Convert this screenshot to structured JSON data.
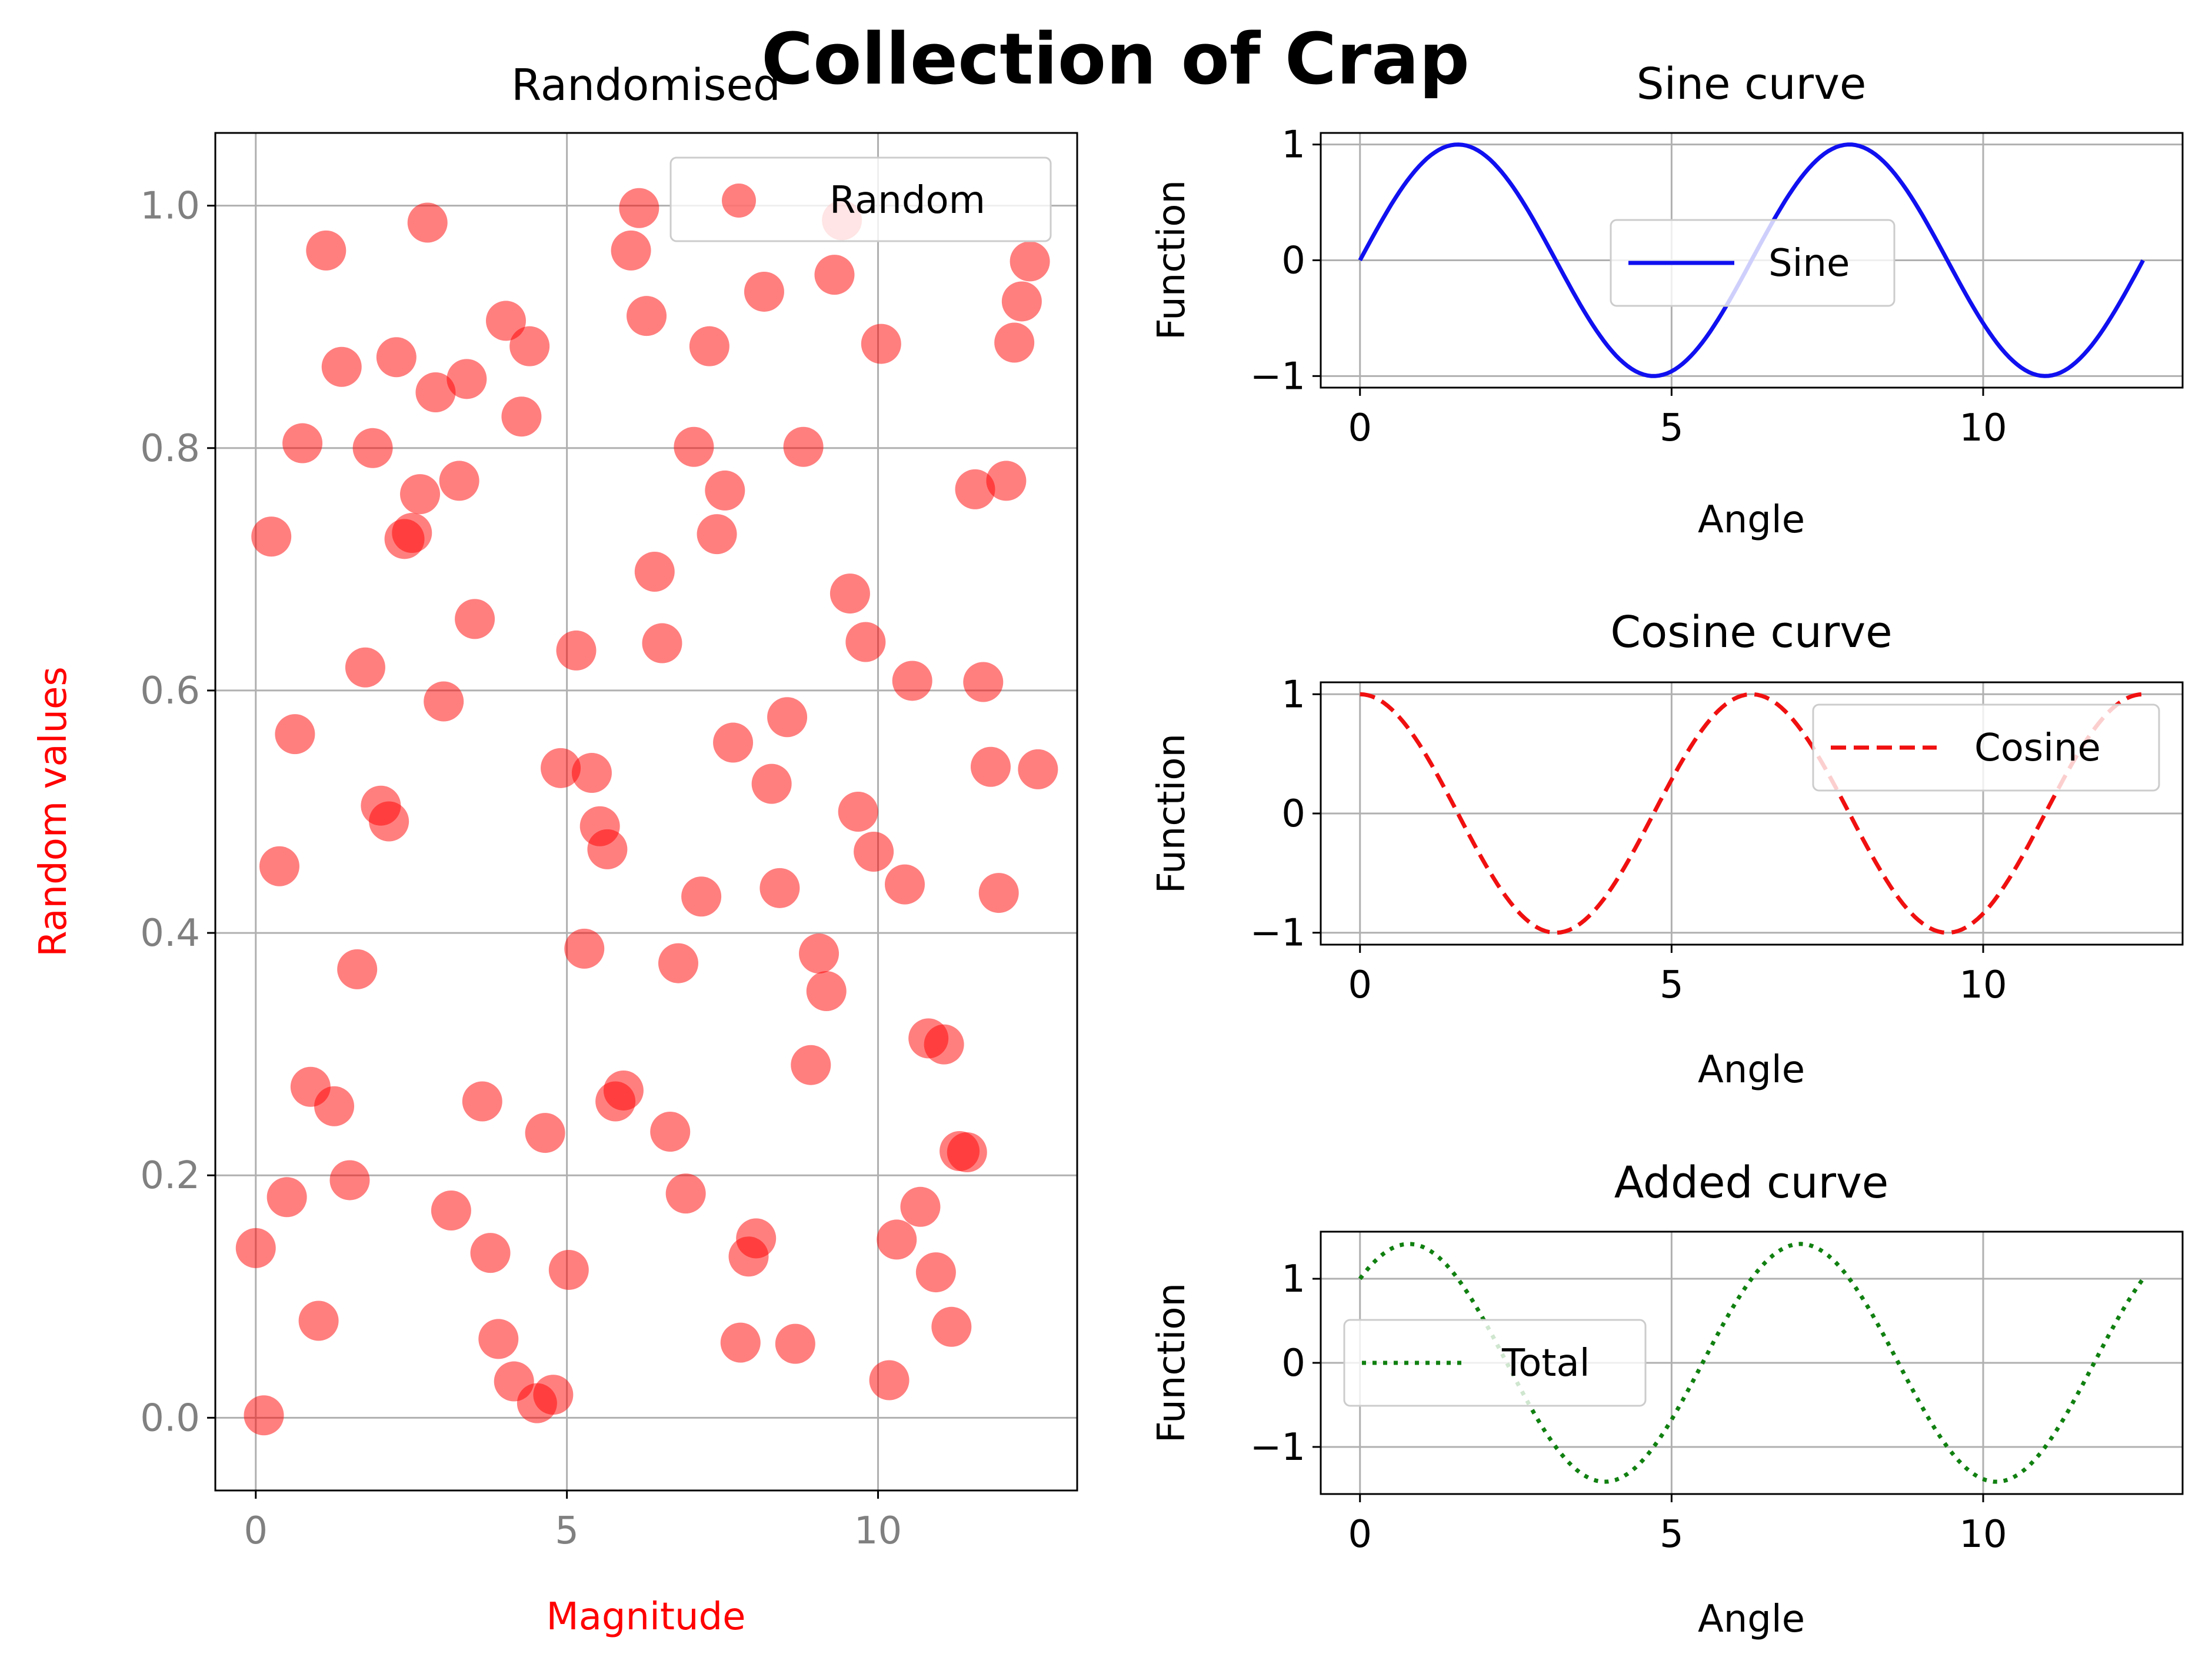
{
  "figure": {
    "suptitle": "Collection of Crap"
  },
  "chart_data": [
    {
      "id": "scatter",
      "type": "scatter",
      "title": "Randomised",
      "xlabel": "Magnitude",
      "ylabel": "Random values",
      "xlim": [
        -0.65,
        13.2
      ],
      "ylim": [
        -0.06,
        1.06
      ],
      "xticks": [
        0,
        5,
        10
      ],
      "yticks": [
        0.0,
        0.2,
        0.4,
        0.6,
        0.8,
        1.0
      ],
      "ytick_labels": [
        "0.0",
        "0.2",
        "0.4",
        "0.6",
        "0.8",
        "1.0"
      ],
      "grid": true,
      "legend": {
        "placement": "upper right",
        "entries": [
          "Random"
        ]
      },
      "colors": {
        "marker": "#ff0000",
        "marker_alpha": 0.5,
        "xlabel": "#ff0000",
        "ylabel": "#ff0000",
        "tick_labels": "#808080"
      },
      "series": [
        {
          "name": "Random",
          "x": [
            0.0,
            0.13,
            0.25,
            0.38,
            0.5,
            0.63,
            0.75,
            0.88,
            1.01,
            1.13,
            1.26,
            1.38,
            1.51,
            1.63,
            1.76,
            1.88,
            2.01,
            2.14,
            2.26,
            2.39,
            2.51,
            2.64,
            2.76,
            2.89,
            3.02,
            3.14,
            3.27,
            3.39,
            3.52,
            3.64,
            3.77,
            3.9,
            4.02,
            4.15,
            4.27,
            4.4,
            4.52,
            4.65,
            4.78,
            4.9,
            5.03,
            5.15,
            5.28,
            5.4,
            5.53,
            5.65,
            5.78,
            5.91,
            6.03,
            6.16,
            6.28,
            6.41,
            6.53,
            6.66,
            6.79,
            6.91,
            7.04,
            7.16,
            7.29,
            7.41,
            7.54,
            7.67,
            7.79,
            7.92,
            8.04,
            8.17,
            8.29,
            8.42,
            8.54,
            8.67,
            8.8,
            8.92,
            9.05,
            9.17,
            9.3,
            9.42,
            9.55,
            9.68,
            9.8,
            9.93,
            10.05,
            10.18,
            10.3,
            10.43,
            10.55,
            10.68,
            10.81,
            10.93,
            11.06,
            11.18,
            11.31,
            11.43,
            11.56,
            11.69,
            11.81,
            11.94,
            12.06,
            12.19,
            12.31,
            12.44,
            12.57
          ],
          "y": [
            0.14,
            0.002,
            0.727,
            0.455,
            0.182,
            0.564,
            0.804,
            0.273,
            0.08,
            0.963,
            0.257,
            0.867,
            0.196,
            0.37,
            0.619,
            0.8,
            0.505,
            0.492,
            0.875,
            0.725,
            0.73,
            0.762,
            0.986,
            0.846,
            0.591,
            0.171,
            0.773,
            0.857,
            0.659,
            0.261,
            0.136,
            0.065,
            0.905,
            0.03,
            0.826,
            0.884,
            0.012,
            0.235,
            0.019,
            0.536,
            0.122,
            0.633,
            0.387,
            0.532,
            0.488,
            0.469,
            0.261,
            0.27,
            0.963,
            0.998,
            0.909,
            0.698,
            0.639,
            0.236,
            0.375,
            0.185,
            0.801,
            0.43,
            0.884,
            0.729,
            0.765,
            0.557,
            0.062,
            0.133,
            0.148,
            0.929,
            0.523,
            0.437,
            0.578,
            0.061,
            0.801,
            0.291,
            0.383,
            0.352,
            0.943,
            0.988,
            0.68,
            0.5,
            0.64,
            0.467,
            0.886,
            0.031,
            0.147,
            0.44,
            0.608,
            0.174,
            0.313,
            0.12,
            0.308,
            0.075,
            0.22,
            0.219,
            0.766,
            0.607,
            0.537,
            0.433,
            0.773,
            0.887,
            0.921,
            0.954,
            0.535
          ]
        }
      ]
    },
    {
      "id": "sine",
      "type": "line",
      "title": "Sine curve",
      "xlabel": "Angle",
      "ylabel": "Function",
      "function": "sin(x)",
      "x_range": [
        0,
        12.566
      ],
      "samples": 200,
      "xlim": [
        -0.63,
        13.2
      ],
      "ylim": [
        -1.1,
        1.1
      ],
      "xticks": [
        0,
        5,
        10
      ],
      "yticks": [
        -1,
        0,
        1
      ],
      "ytick_labels": [
        "−1",
        "0",
        "1"
      ],
      "grid": true,
      "legend": {
        "placement": "lower center",
        "entries": [
          "Sine"
        ]
      },
      "series": [
        {
          "name": "Sine",
          "color": "#1010f0",
          "linestyle": "solid"
        }
      ]
    },
    {
      "id": "cosine",
      "type": "line",
      "title": "Cosine curve",
      "xlabel": "Angle",
      "ylabel": "Function",
      "function": "cos(x)",
      "x_range": [
        0,
        12.566
      ],
      "samples": 200,
      "xlim": [
        -0.63,
        13.2
      ],
      "ylim": [
        -1.1,
        1.1
      ],
      "xticks": [
        0,
        5,
        10
      ],
      "yticks": [
        -1,
        0,
        1
      ],
      "ytick_labels": [
        "−1",
        "0",
        "1"
      ],
      "grid": true,
      "legend": {
        "placement": "upper right",
        "entries": [
          "Cosine"
        ]
      },
      "series": [
        {
          "name": "Cosine",
          "color": "#f01010",
          "linestyle": "dashed"
        }
      ]
    },
    {
      "id": "added",
      "type": "line",
      "title": "Added curve",
      "xlabel": "Angle",
      "ylabel": "Function",
      "function": "sin(x) + cos(x)",
      "x_range": [
        0,
        12.566
      ],
      "samples": 200,
      "xlim": [
        -0.63,
        13.2
      ],
      "ylim": [
        -1.56,
        1.56
      ],
      "xticks": [
        0,
        5,
        10
      ],
      "yticks": [
        -1,
        0,
        1
      ],
      "ytick_labels": [
        "−1",
        "0",
        "1"
      ],
      "grid": true,
      "legend": {
        "placement": "center left",
        "entries": [
          "Total"
        ]
      },
      "series": [
        {
          "name": "Total",
          "color": "#108010",
          "linestyle": "dotted"
        }
      ]
    }
  ]
}
